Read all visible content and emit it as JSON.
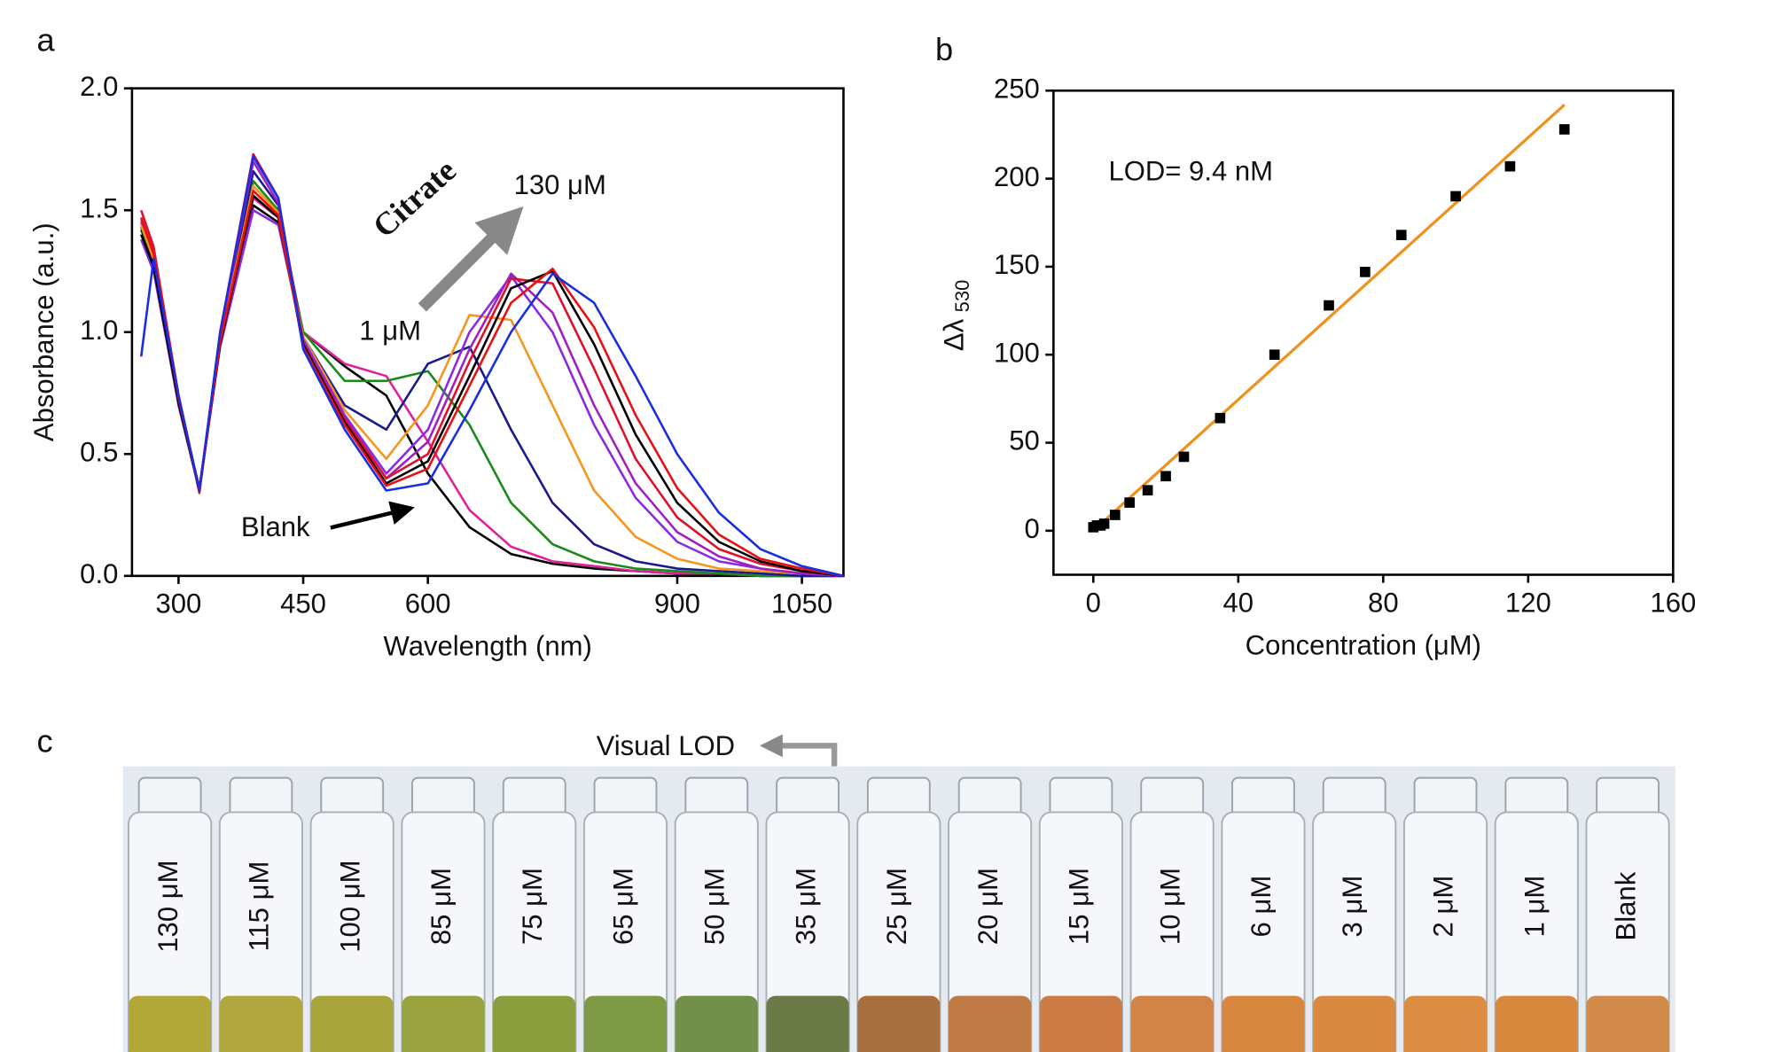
{
  "chart_data": [
    {
      "type": "line",
      "panel_label": "a",
      "xlabel": "Wavelength (nm)",
      "ylabel": "Absorbance (a.u.)",
      "xlim": [
        244,
        1100
      ],
      "ylim": [
        0,
        2
      ],
      "xticks": [
        300,
        450,
        600,
        900,
        1050
      ],
      "yticks": [
        {
          "value": 0,
          "label": "0.0"
        },
        {
          "value": 0.5,
          "label": "0.5"
        },
        {
          "value": 1,
          "label": "1.0"
        },
        {
          "value": 1.5,
          "label": "1.5"
        },
        {
          "value": 2,
          "label": "2.0"
        }
      ],
      "annotations": [
        "Citrate",
        "130 μM",
        "1 μM",
        "Blank"
      ],
      "x": [
        255,
        270,
        300,
        325,
        350,
        390,
        420,
        450,
        500,
        550,
        600,
        650,
        700,
        750,
        800,
        850,
        900,
        950,
        1000,
        1050,
        1100
      ],
      "series": [
        {
          "color": "#000000",
          "values": [
            1.42,
            1.3,
            0.72,
            0.36,
            0.95,
            1.52,
            1.45,
            1.0,
            0.86,
            0.74,
            0.42,
            0.2,
            0.09,
            0.05,
            0.03,
            0.02,
            0.01,
            0.01,
            0,
            0,
            0
          ]
        },
        {
          "color": "#e0209a",
          "values": [
            1.45,
            1.32,
            0.73,
            0.35,
            0.96,
            1.55,
            1.47,
            1.0,
            0.87,
            0.82,
            0.55,
            0.27,
            0.12,
            0.06,
            0.04,
            0.02,
            0.01,
            0.01,
            0,
            0,
            0
          ]
        },
        {
          "color": "#1a8a1a",
          "values": [
            1.43,
            1.3,
            0.72,
            0.35,
            0.97,
            1.62,
            1.5,
            1.0,
            0.8,
            0.8,
            0.84,
            0.62,
            0.3,
            0.13,
            0.06,
            0.03,
            0.02,
            0.01,
            0,
            0,
            0
          ]
        },
        {
          "color": "#1a1a8c",
          "values": [
            1.4,
            1.28,
            0.7,
            0.35,
            0.98,
            1.66,
            1.52,
            0.98,
            0.7,
            0.6,
            0.87,
            0.94,
            0.6,
            0.3,
            0.13,
            0.06,
            0.03,
            0.02,
            0.01,
            0,
            0
          ]
        },
        {
          "color": "#f5961e",
          "values": [
            1.44,
            1.3,
            0.72,
            0.35,
            0.97,
            1.6,
            1.49,
            0.98,
            0.68,
            0.48,
            0.7,
            1.07,
            1.05,
            0.7,
            0.35,
            0.16,
            0.07,
            0.03,
            0.02,
            0.01,
            0
          ]
        },
        {
          "color": "#8a2be2",
          "values": [
            1.38,
            1.25,
            0.7,
            0.36,
            0.94,
            1.5,
            1.44,
            0.97,
            0.66,
            0.42,
            0.6,
            1.0,
            1.23,
            1.0,
            0.62,
            0.32,
            0.14,
            0.06,
            0.03,
            0.01,
            0
          ]
        },
        {
          "color": "#a020c0",
          "values": [
            1.46,
            1.33,
            0.74,
            0.35,
            0.99,
            1.7,
            1.53,
            0.96,
            0.65,
            0.4,
            0.55,
            0.93,
            1.24,
            1.08,
            0.7,
            0.38,
            0.18,
            0.08,
            0.03,
            0.01,
            0
          ]
        },
        {
          "color": "#e0102a",
          "values": [
            1.5,
            1.35,
            0.74,
            0.34,
            1.0,
            1.73,
            1.55,
            0.95,
            0.64,
            0.4,
            0.5,
            0.88,
            1.22,
            1.2,
            0.85,
            0.48,
            0.24,
            0.11,
            0.05,
            0.02,
            0
          ]
        },
        {
          "color": "#000000",
          "values": [
            1.4,
            1.27,
            0.71,
            0.35,
            0.95,
            1.56,
            1.47,
            0.95,
            0.63,
            0.38,
            0.47,
            0.82,
            1.18,
            1.25,
            0.95,
            0.58,
            0.3,
            0.14,
            0.06,
            0.02,
            0
          ]
        },
        {
          "color": "#e81010",
          "values": [
            1.47,
            1.32,
            0.73,
            0.35,
            0.96,
            1.58,
            1.48,
            0.94,
            0.62,
            0.37,
            0.44,
            0.78,
            1.12,
            1.26,
            1.02,
            0.66,
            0.36,
            0.17,
            0.07,
            0.03,
            0
          ]
        },
        {
          "color": "#1a2ee0",
          "values": [
            0.9,
            1.3,
            0.74,
            0.35,
            1.0,
            1.72,
            1.55,
            0.93,
            0.6,
            0.35,
            0.38,
            0.68,
            1.0,
            1.24,
            1.12,
            0.82,
            0.5,
            0.26,
            0.11,
            0.04,
            0
          ]
        }
      ]
    },
    {
      "type": "scatter",
      "panel_label": "b",
      "xlabel": "Concentration (μM)",
      "ylabel": "Δλ",
      "ylabel_sub": "530",
      "xlim": [
        -11,
        160
      ],
      "ylim": [
        -25,
        250
      ],
      "xticks": [
        0,
        40,
        80,
        120,
        160
      ],
      "yticks": [
        0,
        50,
        100,
        150,
        200,
        250
      ],
      "annotation": "LOD= 9.4 nM",
      "color": "#000000",
      "x": [
        0,
        1,
        2,
        3,
        6,
        10,
        15,
        20,
        25,
        35,
        50,
        65,
        75,
        85,
        100,
        115,
        130
      ],
      "values": [
        2,
        3,
        3,
        4,
        9,
        16,
        23,
        31,
        42,
        64,
        100,
        128,
        147,
        168,
        190,
        207,
        228
      ],
      "fit": {
        "color": "#f0901e",
        "x": [
          0,
          130
        ],
        "values": [
          0,
          242
        ]
      }
    }
  ],
  "panel_c": {
    "panel_label": "c",
    "annotation": "Visual LOD",
    "vials": [
      "130 μM",
      "115 μM",
      "100 μM",
      "85 μM",
      "75 μM",
      "65 μM",
      "50 μM",
      "35 μM",
      "25 μM",
      "20 μM",
      "15 μM",
      "10 μM",
      "6 μM",
      "3 μM",
      "2 μM",
      "1 μM",
      "Blank"
    ],
    "liquid_colors": [
      "#b2a83a",
      "#b0a83e",
      "#a8a53c",
      "#98a23e",
      "#8a9e3e",
      "#7e9a44",
      "#72904a",
      "#6c7a48",
      "#a8703e",
      "#c07a46",
      "#cc7c44",
      "#d28446",
      "#d8883e",
      "#da8a40",
      "#dc8e44",
      "#d8883c",
      "#d28a4a"
    ]
  }
}
